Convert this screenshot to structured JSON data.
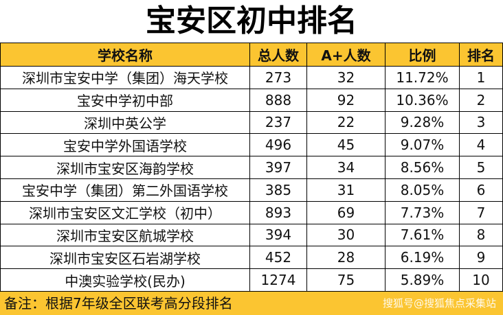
{
  "title": "宝安区初中排名",
  "table": {
    "header": [
      "学校名称",
      "总人数",
      "A+人数",
      "比例",
      "排名"
    ],
    "rows": [
      [
        "深圳市宝安中学（集团）海天学校",
        "273",
        "32",
        "11.72%",
        "1"
      ],
      [
        "宝安中学初中部",
        "888",
        "92",
        "10.36%",
        "2"
      ],
      [
        "深圳中英公学",
        "237",
        "22",
        "9.28%",
        "3"
      ],
      [
        "宝安中学外国语学校",
        "496",
        "45",
        "9.07%",
        "4"
      ],
      [
        "深圳市宝安区海韵学校",
        "397",
        "34",
        "8.56%",
        "5"
      ],
      [
        "宝安中学（集团）第二外国语学校",
        "385",
        "31",
        "8.05%",
        "6"
      ],
      [
        "深圳市宝安区文汇学校（初中）",
        "893",
        "69",
        "7.73%",
        "7"
      ],
      [
        "深圳市宝安区航城学校",
        "394",
        "30",
        "7.61%",
        "8"
      ],
      [
        "深圳市宝安区石岩湖学校",
        "452",
        "28",
        "6.19%",
        "9"
      ],
      [
        "中澳实验学校(民办)",
        "1274",
        "75",
        "5.89%",
        "10"
      ]
    ]
  },
  "footer": {
    "note": "备注：根据7年级全区联考高分段排名",
    "watermark": "搜狐号@搜狐焦点采集站"
  }
}
